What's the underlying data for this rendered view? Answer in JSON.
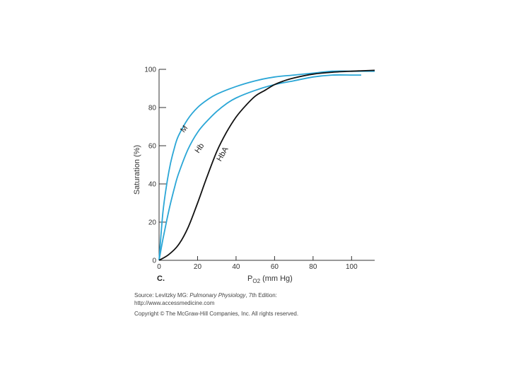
{
  "chart_data": {
    "type": "line",
    "ylabel": "Saturation (%)",
    "xlabel_main": "P",
    "xlabel_sub": "O2",
    "xlabel_unit": " (mm Hg)",
    "panel_label": "C.",
    "xlim": [
      0,
      112
    ],
    "ylim": [
      0,
      100
    ],
    "x_ticks": [
      0,
      20,
      40,
      60,
      80,
      100
    ],
    "y_ticks": [
      0,
      20,
      40,
      60,
      80,
      100
    ],
    "grid": false,
    "series": [
      {
        "name": "M",
        "color": "#2aa6d6",
        "x": [
          0,
          2,
          4,
          6,
          8,
          10,
          15,
          20,
          25,
          30,
          40,
          50,
          60,
          70,
          80,
          90,
          100,
          112
        ],
        "y": [
          0,
          25,
          40,
          51,
          59,
          65,
          74,
          80,
          84,
          87,
          91,
          94,
          96,
          97,
          98,
          99,
          99,
          99
        ]
      },
      {
        "name": "Hb",
        "color": "#2aa6d6",
        "x": [
          0,
          2,
          4,
          6,
          8,
          10,
          15,
          20,
          25,
          30,
          35,
          40,
          50,
          60,
          70,
          80,
          90,
          100,
          105
        ],
        "y": [
          0,
          11,
          21,
          30,
          38,
          45,
          58,
          67,
          73,
          78,
          82,
          85,
          89,
          92,
          94,
          96,
          97,
          97,
          97
        ]
      },
      {
        "name": "HbA",
        "color": "#111111",
        "x": [
          0,
          5,
          10,
          15,
          20,
          25,
          30,
          35,
          40,
          45,
          50,
          55,
          60,
          65,
          70,
          80,
          90,
          100,
          112
        ],
        "y": [
          0,
          3,
          8,
          17,
          30,
          44,
          57,
          67,
          75,
          81,
          86,
          89,
          92,
          94,
          95.5,
          97.5,
          98.5,
          99,
          99.5
        ]
      }
    ],
    "curve_labels": [
      {
        "text": "M",
        "x": 14,
        "y": 68,
        "angle": -52
      },
      {
        "text": "Hb",
        "x": 22,
        "y": 58,
        "angle": -55
      },
      {
        "text": "HbA",
        "x": 34,
        "y": 55,
        "angle": -60
      }
    ]
  },
  "caption": {
    "source_prefix": "Source: Levitzky MG: ",
    "source_book": "Pulmonary Physiology",
    "source_suffix": ", 7th Edition:",
    "url": "http://www.accessmedicine.com",
    "copyright": "Copyright © The McGraw-Hill Companies, Inc. All rights reserved."
  }
}
